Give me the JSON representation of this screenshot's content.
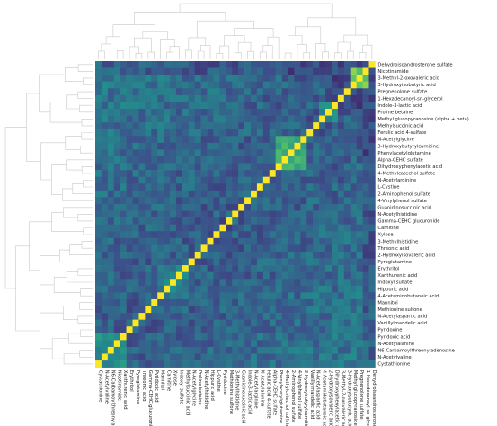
{
  "chart_data": {
    "type": "heatmap",
    "title": "",
    "xlabel": "",
    "ylabel": "",
    "grid": false,
    "legend": "none",
    "n": 45,
    "row_labels": [
      "Dehydroisoandrosterone sulfate",
      "Nicotinamide",
      "3-Methyl-2-oxovaleric acid",
      "3-Hydroxyisobutyric acid",
      "Pregnenolone sulfate",
      "1-Hexadecanoyl-sn-glycerol",
      "Indole-3-lactic acid",
      "Proline betaine",
      "Methyl glucopyranoside (alpha + beta)",
      "Methylsuccinic acid",
      "Ferulic acid 4-sulfate",
      "N-Acetylglycine",
      "3-Hydroxybutyrylcarnitine",
      "Phenylacetylglutamine",
      "Alpha-CEHC sulfate",
      "Dihydroxyphenylacetic acid",
      "4-Methylcatechol sulfate",
      "N-Acetylarginine",
      "L-Cystine",
      "2-Aminophenol sulfate",
      "4-Vinylphenol sulfate",
      "Guanidinosuccinic acid",
      "N-Acetylhistidine",
      "Gamma-CEHC glucuronide",
      "Carnitine",
      "Xylose",
      "3-Methylhistidine",
      "Threonic acid",
      "2-Hydroxyisovaleric acid",
      "Pyroglutamine",
      "Erythritol",
      "Xanthurenic acid",
      "Indoxyl sulfate",
      "Hippuric acid",
      "4-Acetamidobutanoic acid",
      "Mannitol",
      "Methionine sulfone",
      "N-Acetylaspartic acid",
      "Vanillylmandelic acid",
      "Pyridoxine",
      "Pyridoxic acid",
      "N-Acetylalanine",
      "N6-Carbamoylthreonyladenosine",
      "N-Acetylvaline",
      "Cystathionine"
    ],
    "col_labels": [
      "Cystathionine",
      "N-Acetylvaline",
      "N6-Carbamoylthreonyladenosine",
      "Nicotinamide",
      "Xanthurenic acid",
      "Erythritol",
      "Pyroglutamine",
      "Threonic acid",
      "Gamma-CEHC glucuronide",
      "Pyridoxic acid",
      "Mannitol",
      "Carnitine",
      "Xylose",
      "Indoxyl sulfate",
      "Methylsuccinic acid",
      "N-Acetylglycine",
      "Proline betaine",
      "N-Acetylhistidine",
      "Hippuric acid",
      "L-Cystine",
      "Pyridoxine",
      "Methionine sulfone",
      "3-Methylhistidine",
      "Guanidinosuccinic acid",
      "Indole-3-lactic acid",
      "N-Acetylarginine",
      "N-Acetylalanine",
      "Ferulic acid 4-sulfate",
      "Alpha-CEHC sulfate",
      "Phenylacetylglutamine",
      "4-Methylcatechol sulfate",
      "2-Aminophenol sulfate",
      "4-Vinylphenol sulfate",
      "3-Hydroxybutyrylcarnitine",
      "Vanillylmandelic acid",
      "N-Acetylaspartic acid",
      "4-Acetamidobutanoic acid",
      "2-Hydroxyisovaleric acid",
      "Dihydroxyphenylacetic acid",
      "3-Methyl-2-oxovaleric acid",
      "3-Hydroxyisobutyric acid",
      "Methyl glucopyranoside",
      "Pregnenolone sulfate",
      "1-Hexadecanoyl-sn-glycerol",
      "Dehydroisoandrosterone sulfate"
    ],
    "diagonal_value": 1.0,
    "colormap": [
      "#440154",
      "#3b528b",
      "#21918c",
      "#5ec962",
      "#fde725"
    ],
    "highlight_blocks": [
      {
        "start": 1,
        "end": 3,
        "strength": 0.85
      },
      {
        "start": 11,
        "end": 15,
        "strength": 0.7
      },
      {
        "start": 6,
        "end": 8,
        "strength": 0.55
      },
      {
        "start": 30,
        "end": 34,
        "strength": 0.5
      },
      {
        "start": 40,
        "end": 44,
        "strength": 0.55
      }
    ]
  }
}
